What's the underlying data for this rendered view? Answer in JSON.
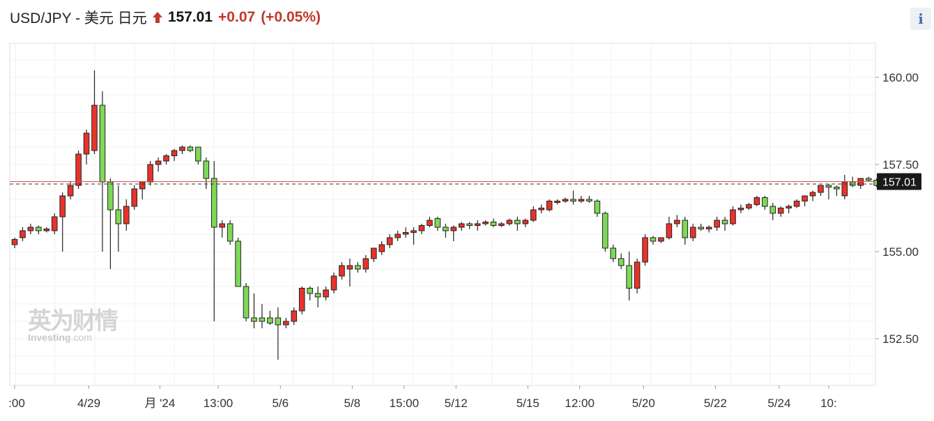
{
  "header": {
    "title": "USD/JPY - 美元 日元",
    "price": "157.01",
    "change": "+0.07",
    "change_pct": "(+0.05%)",
    "arrow_icon": "up-arrow-icon",
    "info_label": "i"
  },
  "watermark": {
    "cn": "英为财情",
    "en": "Investing",
    "en_suffix": ".com"
  },
  "colors": {
    "up": "#e8332a",
    "down": "#7ed957",
    "last_line": "#e05050",
    "tag_bg": "#1a1a1a"
  },
  "chart_data": {
    "type": "candlestick",
    "title": "USD/JPY - 美元 日元",
    "ylim": [
      151.0,
      161.0
    ],
    "yticks": [
      152.5,
      155.0,
      157.5,
      160.0
    ],
    "ytick_labels": [
      "152.50",
      "155.00",
      "157.50",
      "160.00"
    ],
    "xtick_labels": [
      {
        "label": ":00",
        "at": 0
      },
      {
        "label": "4/29",
        "at": 9.3
      },
      {
        "label": "月 '24",
        "at": 18.2
      },
      {
        "label": "13:00",
        "at": 25.5
      },
      {
        "label": "5/6",
        "at": 33.3
      },
      {
        "label": "5/8",
        "at": 42.3
      },
      {
        "label": "15:00",
        "at": 48.8
      },
      {
        "label": "5/12",
        "at": 55.3
      },
      {
        "label": "5/15",
        "at": 64.3
      },
      {
        "label": "12:00",
        "at": 70.8
      },
      {
        "label": "5/20",
        "at": 78.8
      },
      {
        "label": "5/22",
        "at": 87.8
      },
      {
        "label": "5/24",
        "at": 95.8
      },
      {
        "label": "10:",
        "at": 102
      }
    ],
    "last_price": 157.01,
    "last_price_label": "157.01",
    "ref_price": 156.94,
    "candles": [
      [
        155.2,
        155.4,
        155.1,
        155.35
      ],
      [
        155.4,
        155.7,
        155.3,
        155.6
      ],
      [
        155.6,
        155.8,
        155.5,
        155.7
      ],
      [
        155.7,
        155.75,
        155.5,
        155.6
      ],
      [
        155.6,
        155.7,
        155.55,
        155.65
      ],
      [
        155.6,
        156.1,
        155.5,
        156.0
      ],
      [
        156.0,
        156.7,
        155.0,
        156.6
      ],
      [
        156.6,
        157.0,
        156.5,
        156.9
      ],
      [
        156.9,
        157.9,
        156.8,
        157.8
      ],
      [
        157.8,
        158.5,
        157.5,
        158.4
      ],
      [
        157.9,
        160.2,
        157.8,
        159.2
      ],
      [
        159.2,
        159.6,
        155.0,
        157.0
      ],
      [
        157.0,
        157.1,
        154.5,
        156.2
      ],
      [
        156.2,
        156.9,
        155.0,
        155.8
      ],
      [
        155.8,
        156.5,
        155.6,
        156.3
      ],
      [
        156.3,
        156.9,
        156.2,
        156.8
      ],
      [
        156.8,
        157.0,
        156.5,
        157.0
      ],
      [
        157.0,
        157.6,
        156.9,
        157.5
      ],
      [
        157.5,
        157.7,
        157.3,
        157.6
      ],
      [
        157.6,
        157.8,
        157.5,
        157.75
      ],
      [
        157.75,
        157.95,
        157.6,
        157.9
      ],
      [
        157.9,
        158.05,
        157.8,
        158.0
      ],
      [
        158.0,
        158.05,
        157.85,
        157.9
      ],
      [
        158.0,
        158.0,
        157.5,
        157.6
      ],
      [
        157.6,
        157.7,
        156.8,
        157.1
      ],
      [
        157.1,
        157.6,
        153.0,
        155.7
      ],
      [
        155.7,
        155.9,
        155.4,
        155.8
      ],
      [
        155.8,
        155.9,
        155.2,
        155.3
      ],
      [
        155.3,
        155.4,
        154.0,
        154.0
      ],
      [
        154.0,
        154.1,
        153.0,
        153.1
      ],
      [
        153.1,
        153.8,
        152.8,
        153.0
      ],
      [
        153.1,
        153.5,
        152.8,
        153.0
      ],
      [
        153.1,
        153.3,
        152.9,
        152.95
      ],
      [
        153.1,
        153.4,
        151.9,
        152.9
      ],
      [
        152.9,
        153.1,
        152.8,
        153.0
      ],
      [
        153.0,
        153.4,
        152.9,
        153.3
      ],
      [
        153.3,
        154.0,
        153.2,
        153.95
      ],
      [
        153.95,
        154.0,
        153.6,
        153.8
      ],
      [
        153.8,
        154.0,
        153.4,
        153.7
      ],
      [
        153.7,
        154.0,
        153.6,
        153.9
      ],
      [
        153.9,
        154.4,
        153.8,
        154.3
      ],
      [
        154.3,
        154.7,
        154.2,
        154.6
      ],
      [
        154.5,
        154.8,
        154.0,
        154.6
      ],
      [
        154.6,
        154.7,
        154.4,
        154.5
      ],
      [
        154.5,
        154.9,
        154.4,
        154.8
      ],
      [
        154.8,
        155.0,
        154.7,
        155.1
      ],
      [
        155.0,
        155.3,
        154.9,
        155.2
      ],
      [
        155.2,
        155.5,
        155.1,
        155.4
      ],
      [
        155.4,
        155.6,
        155.3,
        155.5
      ],
      [
        155.5,
        155.7,
        155.4,
        155.55
      ],
      [
        155.55,
        155.7,
        155.2,
        155.6
      ],
      [
        155.6,
        155.8,
        155.5,
        155.75
      ],
      [
        155.75,
        156.0,
        155.7,
        155.9
      ],
      [
        155.95,
        156.0,
        155.6,
        155.7
      ],
      [
        155.7,
        155.8,
        155.4,
        155.6
      ],
      [
        155.6,
        155.75,
        155.3,
        155.7
      ],
      [
        155.7,
        155.85,
        155.6,
        155.8
      ],
      [
        155.8,
        155.85,
        155.65,
        155.75
      ],
      [
        155.75,
        155.9,
        155.6,
        155.8
      ],
      [
        155.8,
        155.9,
        155.75,
        155.85
      ],
      [
        155.85,
        155.95,
        155.7,
        155.75
      ],
      [
        155.75,
        155.85,
        155.7,
        155.8
      ],
      [
        155.8,
        155.95,
        155.75,
        155.9
      ],
      [
        155.9,
        156.0,
        155.6,
        155.8
      ],
      [
        155.8,
        155.95,
        155.7,
        155.9
      ],
      [
        155.9,
        156.3,
        155.85,
        156.2
      ],
      [
        156.2,
        156.35,
        156.1,
        156.25
      ],
      [
        156.2,
        156.5,
        156.15,
        156.45
      ],
      [
        156.45,
        156.5,
        156.35,
        156.45
      ],
      [
        156.45,
        156.55,
        156.4,
        156.5
      ],
      [
        156.5,
        156.75,
        156.35,
        156.45
      ],
      [
        156.45,
        156.6,
        156.4,
        156.5
      ],
      [
        156.5,
        156.6,
        156.4,
        156.45
      ],
      [
        156.45,
        156.5,
        156.0,
        156.1
      ],
      [
        156.1,
        156.15,
        155.0,
        155.1
      ],
      [
        155.1,
        155.2,
        154.7,
        154.8
      ],
      [
        154.8,
        154.95,
        154.5,
        154.6
      ],
      [
        154.6,
        155.0,
        153.6,
        153.95
      ],
      [
        153.95,
        154.8,
        153.8,
        154.7
      ],
      [
        154.7,
        155.5,
        154.6,
        155.4
      ],
      [
        155.4,
        155.45,
        155.2,
        155.3
      ],
      [
        155.3,
        155.4,
        155.25,
        155.4
      ],
      [
        155.4,
        156.0,
        155.35,
        155.8
      ],
      [
        155.8,
        156.05,
        155.7,
        155.9
      ],
      [
        155.9,
        156.0,
        155.2,
        155.4
      ],
      [
        155.4,
        155.8,
        155.3,
        155.7
      ],
      [
        155.7,
        155.8,
        155.6,
        155.65
      ],
      [
        155.65,
        155.75,
        155.55,
        155.7
      ],
      [
        155.7,
        156.0,
        155.6,
        155.9
      ],
      [
        155.9,
        156.0,
        155.6,
        155.8
      ],
      [
        155.8,
        156.3,
        155.75,
        156.2
      ],
      [
        156.2,
        156.35,
        156.1,
        156.25
      ],
      [
        156.25,
        156.4,
        156.2,
        156.35
      ],
      [
        156.35,
        156.6,
        156.3,
        156.55
      ],
      [
        156.55,
        156.6,
        156.2,
        156.3
      ],
      [
        156.3,
        156.4,
        155.9,
        156.1
      ],
      [
        156.1,
        156.3,
        156.0,
        156.25
      ],
      [
        156.25,
        156.35,
        156.1,
        156.3
      ],
      [
        156.3,
        156.5,
        156.25,
        156.45
      ],
      [
        156.45,
        156.55,
        156.3,
        156.6
      ],
      [
        156.6,
        156.75,
        156.45,
        156.7
      ],
      [
        156.7,
        156.85,
        156.6,
        156.9
      ],
      [
        156.9,
        156.95,
        156.5,
        156.85
      ],
      [
        156.85,
        156.9,
        156.6,
        156.8
      ],
      [
        156.6,
        157.2,
        156.5,
        157.0
      ],
      [
        157.0,
        157.15,
        156.85,
        156.9
      ],
      [
        156.9,
        157.1,
        156.8,
        157.1
      ],
      [
        157.1,
        157.15,
        157.0,
        157.05
      ],
      [
        157.05,
        157.1,
        156.85,
        156.9
      ],
      [
        156.9,
        157.05,
        156.9,
        157.0
      ]
    ]
  }
}
